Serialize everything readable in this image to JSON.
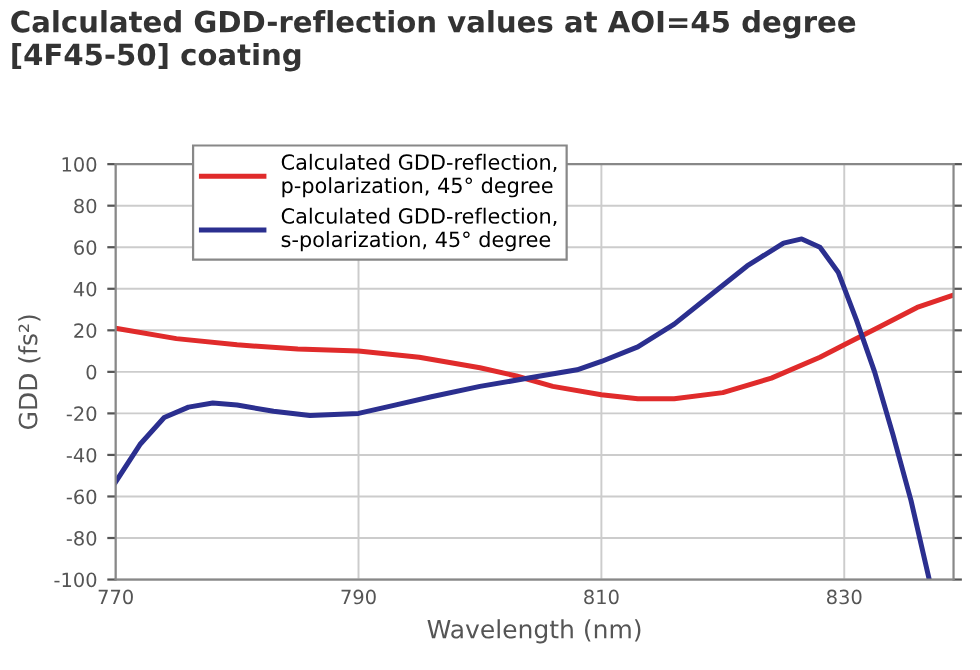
{
  "chart_data": {
    "type": "line",
    "title": "Calculated GDD-reflection values at AOI=45 degree\n[4F45-50] coating",
    "xlabel": "Wavelength (nm)",
    "ylabel": "GDD (fs²)",
    "xlim": [
      770,
      839
    ],
    "xticks": [
      770,
      790,
      810,
      830
    ],
    "ylim": [
      -100,
      100
    ],
    "yticks": [
      -100,
      -80,
      -60,
      -40,
      -20,
      0,
      20,
      40,
      60,
      80,
      100
    ],
    "grid": true,
    "legend": "top left",
    "line_style": "solid",
    "marker": "none",
    "series": [
      {
        "name": "Calculated GDD-reflection,\np-polarization, 45° degree",
        "color": "#e02b2b",
        "x": [
          770,
          775,
          780,
          785,
          790,
          795,
          800,
          803,
          806,
          810,
          813,
          816,
          820,
          824,
          828,
          830,
          833,
          836,
          839
        ],
        "values": [
          21,
          16,
          13,
          11,
          10,
          7,
          2,
          -2,
          -7,
          -11,
          -13,
          -13,
          -10,
          -3,
          7,
          13,
          22,
          31,
          37
        ]
      },
      {
        "name": "Calculated GDD-reflection,\ns-polarization, 45° degree",
        "color": "#2b2f8f",
        "x": [
          770,
          772,
          774,
          776,
          778,
          780,
          783,
          786,
          790,
          793,
          796,
          800,
          804,
          808,
          810,
          813,
          816,
          819,
          822,
          825,
          826.5,
          828,
          829.5,
          831,
          832.5,
          834,
          835.5,
          837
        ],
        "values": [
          -53,
          -35,
          -22,
          -17,
          -15,
          -16,
          -19,
          -21,
          -20,
          -16,
          -12,
          -7,
          -3,
          1,
          5,
          12,
          23,
          37,
          51,
          62,
          64,
          60,
          48,
          25,
          0,
          -30,
          -62,
          -100
        ]
      }
    ]
  }
}
